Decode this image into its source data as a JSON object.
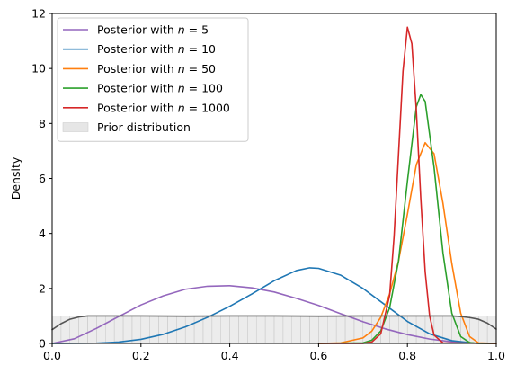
{
  "chart_data": {
    "type": "line",
    "xlabel": "",
    "ylabel": "Density",
    "xlim": [
      0.0,
      1.0
    ],
    "ylim": [
      0,
      12
    ],
    "xticks": [
      "0.0",
      "0.2",
      "0.4",
      "0.6",
      "0.8",
      "1.0"
    ],
    "yticks": [
      "0",
      "2",
      "4",
      "6",
      "8",
      "10",
      "12"
    ],
    "grid": false,
    "legend_position": "top-left",
    "series": [
      {
        "name": "Posterior with n = 5",
        "legend_prefix": "Posterior with ",
        "legend_var": "n",
        "legend_suffix": " = 5",
        "color": "#9467bd",
        "x": [
          0.0,
          0.05,
          0.1,
          0.15,
          0.2,
          0.25,
          0.3,
          0.35,
          0.4,
          0.45,
          0.5,
          0.55,
          0.6,
          0.65,
          0.7,
          0.75,
          0.8,
          0.85,
          0.9,
          0.95,
          1.0
        ],
        "y": [
          0.0,
          0.17,
          0.55,
          0.98,
          1.4,
          1.73,
          1.97,
          2.08,
          2.1,
          2.02,
          1.87,
          1.64,
          1.38,
          1.08,
          0.79,
          0.53,
          0.32,
          0.16,
          0.06,
          0.01,
          0.0
        ]
      },
      {
        "name": "Posterior with n = 10",
        "legend_prefix": "Posterior with ",
        "legend_var": "n",
        "legend_suffix": " = 10",
        "color": "#1f77b4",
        "x": [
          0.0,
          0.1,
          0.15,
          0.2,
          0.25,
          0.3,
          0.35,
          0.4,
          0.45,
          0.5,
          0.55,
          0.58,
          0.6,
          0.65,
          0.7,
          0.75,
          0.8,
          0.85,
          0.9,
          0.95,
          1.0
        ],
        "y": [
          0.0,
          0.01,
          0.05,
          0.15,
          0.33,
          0.6,
          0.95,
          1.35,
          1.8,
          2.28,
          2.65,
          2.75,
          2.73,
          2.48,
          2.0,
          1.4,
          0.8,
          0.35,
          0.1,
          0.01,
          0.0
        ]
      },
      {
        "name": "Posterior with n = 50",
        "legend_prefix": "Posterior with ",
        "legend_var": "n",
        "legend_suffix": " = 50",
        "color": "#ff7f0e",
        "x": [
          0.6,
          0.65,
          0.7,
          0.72,
          0.74,
          0.76,
          0.78,
          0.8,
          0.82,
          0.84,
          0.86,
          0.88,
          0.9,
          0.92,
          0.94,
          0.96,
          1.0
        ],
        "y": [
          0.0,
          0.02,
          0.2,
          0.45,
          0.95,
          1.8,
          3.0,
          4.7,
          6.5,
          7.3,
          6.9,
          5.1,
          2.9,
          1.1,
          0.25,
          0.02,
          0.0
        ]
      },
      {
        "name": "Posterior with n = 100",
        "legend_prefix": "Posterior with ",
        "legend_var": "n",
        "legend_suffix": " = 100",
        "color": "#2ca02c",
        "x": [
          0.6,
          0.7,
          0.72,
          0.74,
          0.76,
          0.78,
          0.8,
          0.82,
          0.83,
          0.84,
          0.86,
          0.88,
          0.9,
          0.92,
          0.94,
          0.96,
          1.0
        ],
        "y": [
          0.0,
          0.02,
          0.12,
          0.45,
          1.3,
          3.0,
          5.9,
          8.6,
          9.05,
          8.8,
          6.4,
          3.3,
          1.1,
          0.25,
          0.03,
          0.0,
          0.0
        ]
      },
      {
        "name": "Posterior with n = 1000",
        "legend_prefix": "Posterior with ",
        "legend_var": "n",
        "legend_suffix": " = 1000",
        "color": "#d62728",
        "x": [
          0.6,
          0.7,
          0.72,
          0.74,
          0.76,
          0.77,
          0.78,
          0.79,
          0.8,
          0.81,
          0.82,
          0.83,
          0.84,
          0.85,
          0.86,
          0.88,
          1.0
        ],
        "y": [
          0.0,
          0.0,
          0.05,
          0.35,
          1.75,
          3.9,
          6.9,
          9.9,
          11.5,
          10.9,
          8.5,
          5.3,
          2.6,
          1.0,
          0.3,
          0.02,
          0.0
        ]
      },
      {
        "name": "",
        "color": "#555555",
        "in_legend": false,
        "x": [
          0.0,
          0.02,
          0.04,
          0.06,
          0.08,
          0.1,
          0.2,
          0.3,
          0.4,
          0.5,
          0.6,
          0.7,
          0.8,
          0.9,
          0.92,
          0.94,
          0.96,
          0.98,
          1.0
        ],
        "y": [
          0.5,
          0.72,
          0.88,
          0.96,
          1.0,
          1.0,
          1.0,
          0.99,
          1.0,
          1.0,
          0.99,
          1.0,
          1.0,
          1.0,
          0.98,
          0.94,
          0.88,
          0.74,
          0.52
        ]
      }
    ],
    "prior": {
      "name": "Prior distribution",
      "type": "histogram",
      "color": "#dcdcdc",
      "edge_color": "#c8c8c8",
      "bin_count": 50,
      "density": 1.0
    }
  }
}
